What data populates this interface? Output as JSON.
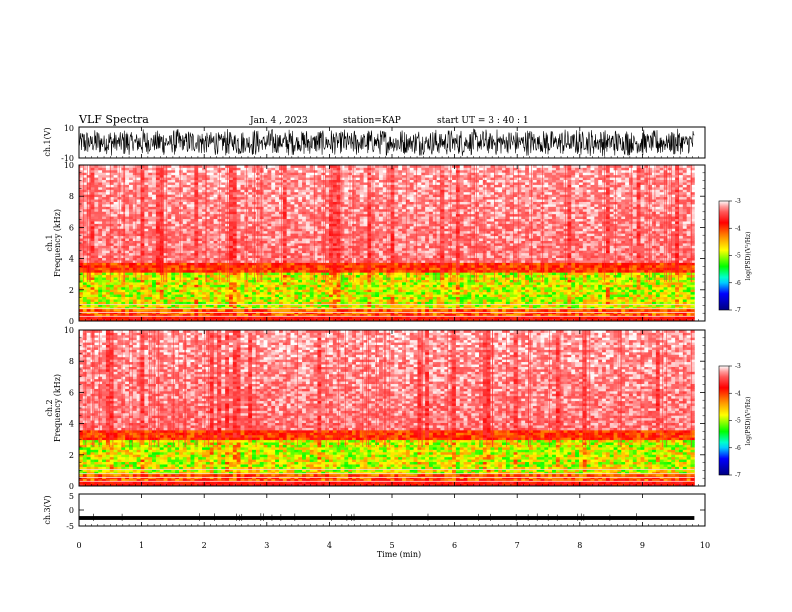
{
  "header": {
    "title": "VLF Spectra",
    "date": "Jan. 4 , 2023",
    "station": "station=KAP",
    "start_ut": "start UT = 3 : 40 : 1"
  },
  "chart_data": [
    {
      "type": "line",
      "panel": "ch1-waveform",
      "ylabel": "ch.1(V)",
      "ylim": [
        -10,
        10
      ],
      "y_ticks": [
        "10",
        "-10"
      ],
      "xlim": [
        0,
        10
      ],
      "description_values": {
        "typical_range_V": [
          -9,
          9
        ],
        "data_end_min": 9.83
      }
    },
    {
      "type": "heatmap",
      "panel": "ch1-spectrogram",
      "ylabel": "ch.1 Frequency (kHz)",
      "ylim": [
        0,
        10
      ],
      "y_ticks": [
        "0",
        "2",
        "4",
        "6",
        "8",
        "10"
      ],
      "xlim": [
        0,
        10
      ],
      "intense_band_kHz": [
        0.8,
        3.2
      ],
      "colorbar": {
        "label": "log(PSD)(V²/Hz)",
        "ticks": [
          "-3",
          "-4",
          "-5",
          "-6",
          "-7"
        ],
        "range": [
          -7,
          -3
        ]
      }
    },
    {
      "type": "heatmap",
      "panel": "ch2-spectrogram",
      "ylabel": "ch.2 Frequency (kHz)",
      "ylim": [
        0,
        10
      ],
      "y_ticks": [
        "0",
        "2",
        "4",
        "6",
        "8",
        "10"
      ],
      "xlim": [
        0,
        10
      ],
      "intense_band_kHz": [
        0.8,
        3.0
      ],
      "colorbar": {
        "label": "log(PSD)(V²/Hz)",
        "ticks": [
          "-3",
          "-4",
          "-5",
          "-6",
          "-7"
        ],
        "range": [
          -7,
          -3
        ]
      }
    },
    {
      "type": "line",
      "panel": "ch3-waveform",
      "ylabel": "ch.3(V)",
      "ylim": [
        -5,
        5
      ],
      "y_ticks": [
        "5",
        "0",
        "-5"
      ],
      "xlim": [
        0,
        10
      ],
      "description_values": {
        "level_V": -2.5,
        "band_V": [
          -3.1,
          -1.9
        ],
        "data_end_min": 9.83
      }
    }
  ],
  "x_axis": {
    "label": "Time (min)",
    "ticks": [
      "0",
      "1",
      "2",
      "3",
      "4",
      "5",
      "6",
      "7",
      "8",
      "9",
      "10"
    ]
  },
  "colors": {
    "background": "#ffffff",
    "wave": "#000000",
    "cmap": [
      "#ffffff",
      "#ff3030",
      "#ff0000",
      "#ff8c00",
      "#ffff00",
      "#00ff00",
      "#00ffff",
      "#0000ff",
      "#000080"
    ]
  }
}
